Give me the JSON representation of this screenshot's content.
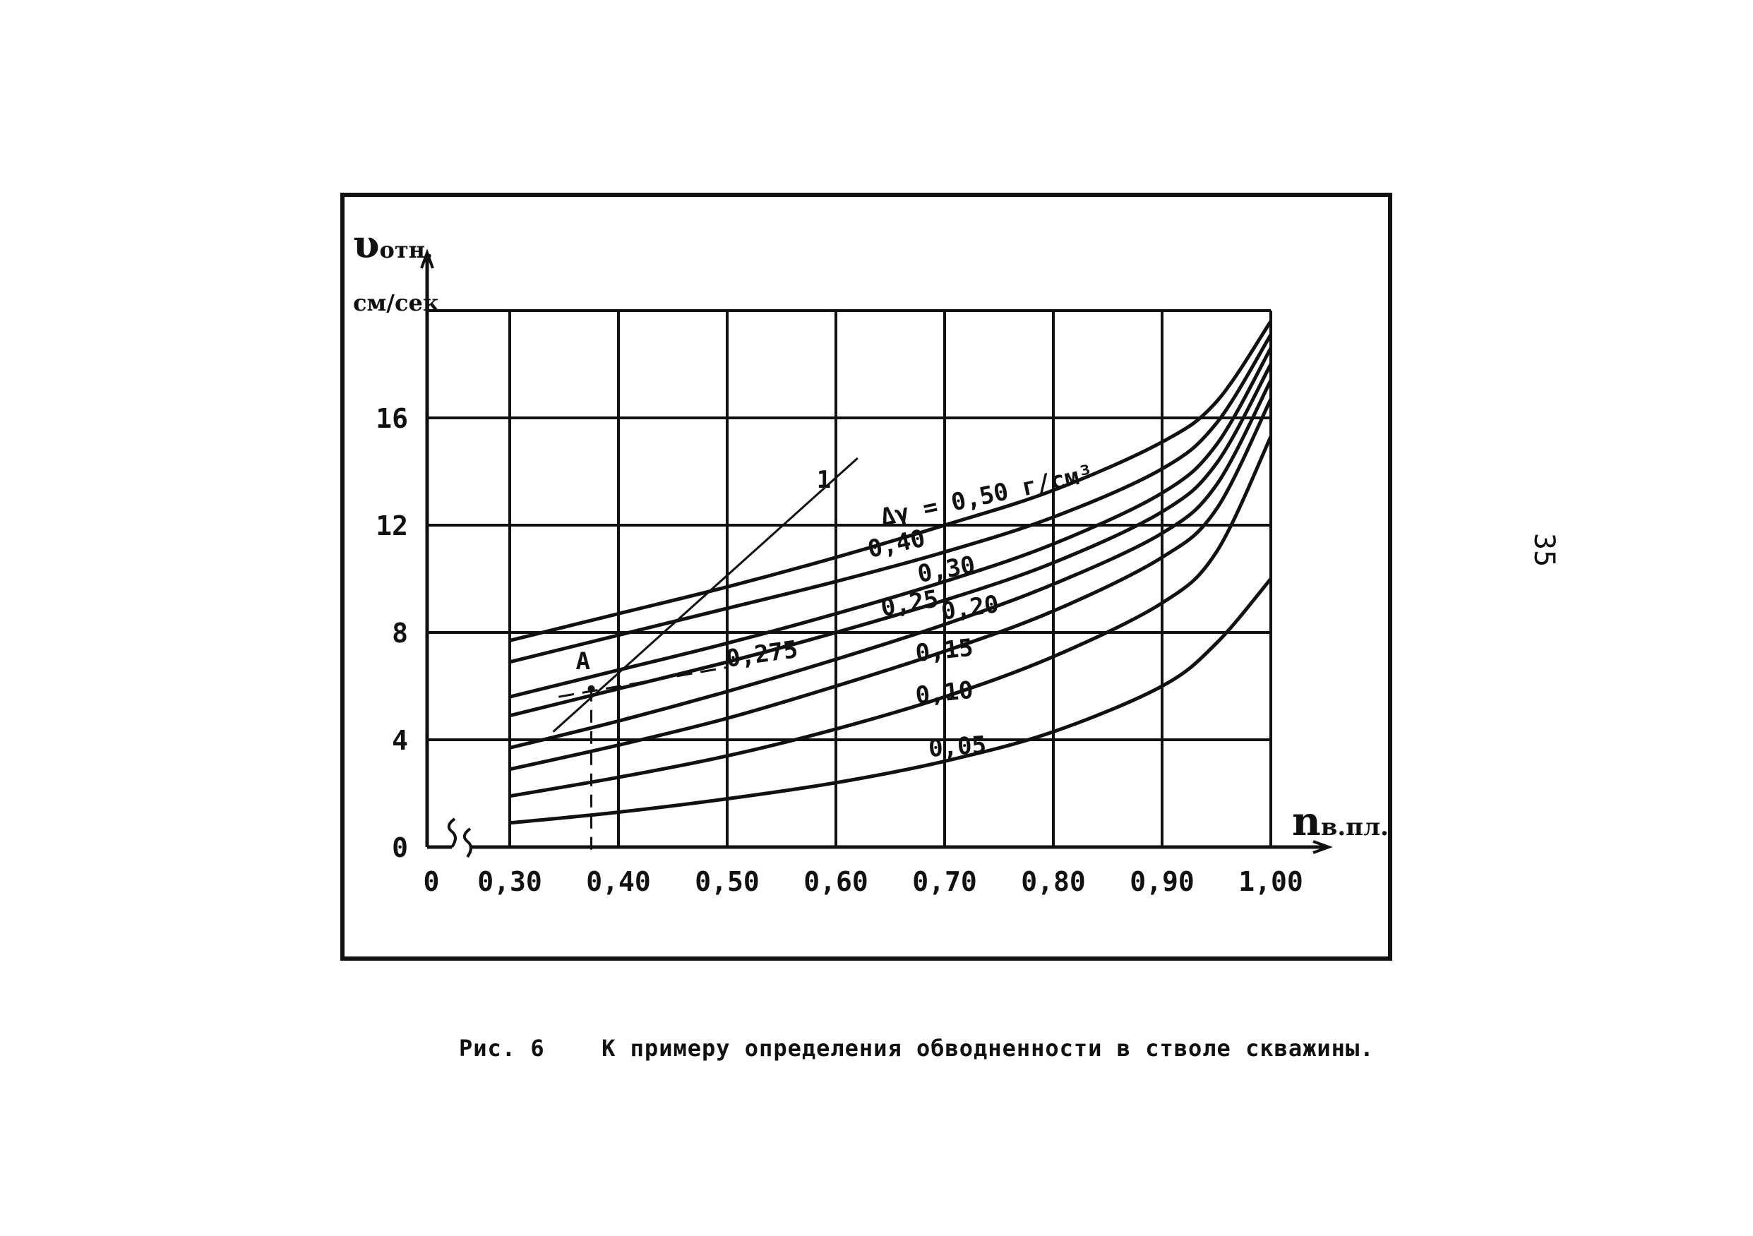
{
  "page": {
    "number": "35"
  },
  "caption": {
    "label": "Рис. 6",
    "text": "К примеру определения обводненности в стволе скважины."
  },
  "chart_data": {
    "type": "line",
    "ylabel_symbol": "υ",
    "ylabel_sub": "отн.",
    "yunit": "см/сек",
    "xlabel": "n",
    "xlabel_sub": "в.пл.",
    "xlim": [
      0.3,
      1.0
    ],
    "ylim": [
      0,
      20
    ],
    "grid": true,
    "x_ticks": [
      {
        "value": 0.3,
        "label": "0,30"
      },
      {
        "value": 0.4,
        "label": "0,40"
      },
      {
        "value": 0.5,
        "label": "0,50"
      },
      {
        "value": 0.6,
        "label": "0,60"
      },
      {
        "value": 0.7,
        "label": "0,70"
      },
      {
        "value": 0.8,
        "label": "0,80"
      },
      {
        "value": 0.9,
        "label": "0,90"
      },
      {
        "value": 1.0,
        "label": "1,00"
      }
    ],
    "x_origin_label": "0",
    "y_ticks": [
      {
        "value": 0,
        "label": "0"
      },
      {
        "value": 4,
        "label": "4"
      },
      {
        "value": 8,
        "label": "8"
      },
      {
        "value": 12,
        "label": "12"
      },
      {
        "value": 16,
        "label": "16"
      }
    ],
    "x": [
      0.3,
      0.4,
      0.5,
      0.6,
      0.7,
      0.8,
      0.9,
      0.95,
      1.0
    ],
    "series": [
      {
        "name": "0,50 г/см³",
        "values": [
          7.7,
          8.7,
          9.7,
          10.8,
          12.0,
          13.3,
          15.1,
          16.6,
          19.6
        ]
      },
      {
        "name": "0,40",
        "values": [
          6.9,
          7.9,
          8.9,
          9.9,
          11.0,
          12.3,
          14.1,
          15.8,
          19.1
        ]
      },
      {
        "name": "0,30",
        "values": [
          5.6,
          6.6,
          7.6,
          8.7,
          9.9,
          11.3,
          13.2,
          15.0,
          18.6
        ]
      },
      {
        "name": "0,25",
        "values": [
          4.9,
          5.9,
          6.9,
          8.0,
          9.2,
          10.6,
          12.5,
          14.3,
          18.0
        ]
      },
      {
        "name": "0,20",
        "values": [
          3.7,
          4.7,
          5.8,
          7.0,
          8.3,
          9.8,
          11.7,
          13.5,
          17.4
        ]
      },
      {
        "name": "0,15",
        "values": [
          2.9,
          3.8,
          4.8,
          6.0,
          7.3,
          8.8,
          10.8,
          12.6,
          16.7
        ]
      },
      {
        "name": "0,10",
        "values": [
          1.9,
          2.6,
          3.4,
          4.4,
          5.6,
          7.1,
          9.1,
          11.0,
          15.3
        ]
      },
      {
        "name": "0,05",
        "values": [
          0.9,
          1.3,
          1.8,
          2.4,
          3.2,
          4.3,
          6.0,
          7.6,
          10.0
        ]
      }
    ],
    "delta_label": "Δγ =",
    "line_1": {
      "label": "1",
      "x": [
        0.34,
        0.62
      ],
      "y": [
        4.3,
        14.5
      ]
    },
    "point_A": {
      "label": "A",
      "x": 0.375,
      "y": 5.9
    },
    "interp_label": "0,275",
    "interp_dash": {
      "x": [
        0.345,
        0.5
      ],
      "y": [
        5.6,
        6.7
      ]
    }
  }
}
